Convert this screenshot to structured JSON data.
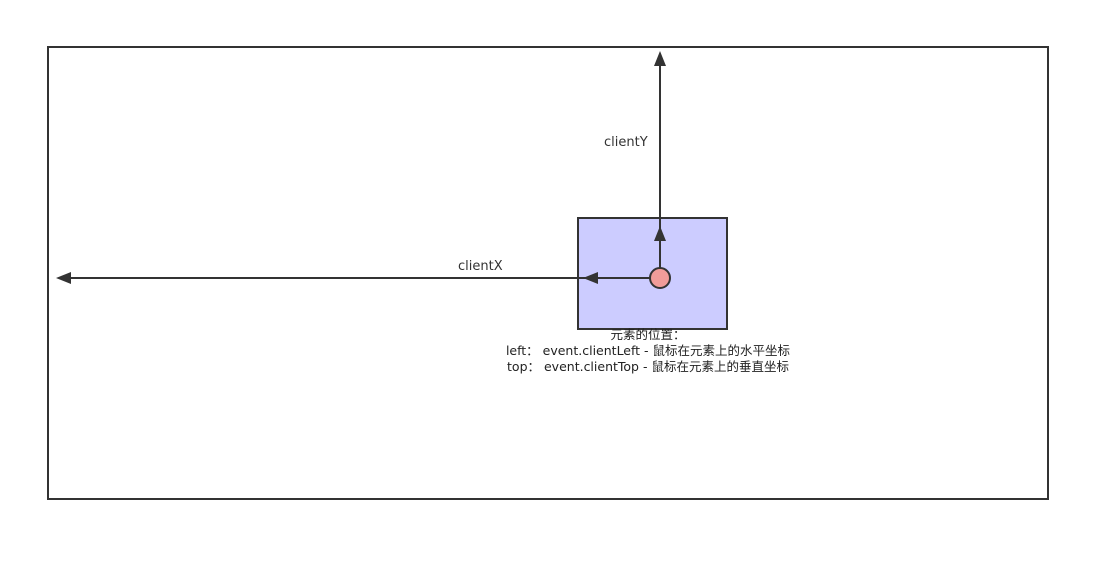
{
  "labels": {
    "client_x": "clientX",
    "client_y": "clientY"
  },
  "note": {
    "title": "元素的位置：",
    "left_line": "left： event.clientLeft - 鼠标在元素上的水平坐标",
    "top_line": "top： event.clientTop - 鼠标在元素上的垂直坐标"
  },
  "colors": {
    "page_border": "#333333",
    "element_fill": "#ccccff",
    "element_border": "#333333",
    "pointer_fill": "#f19c99",
    "arrow": "#333333"
  }
}
